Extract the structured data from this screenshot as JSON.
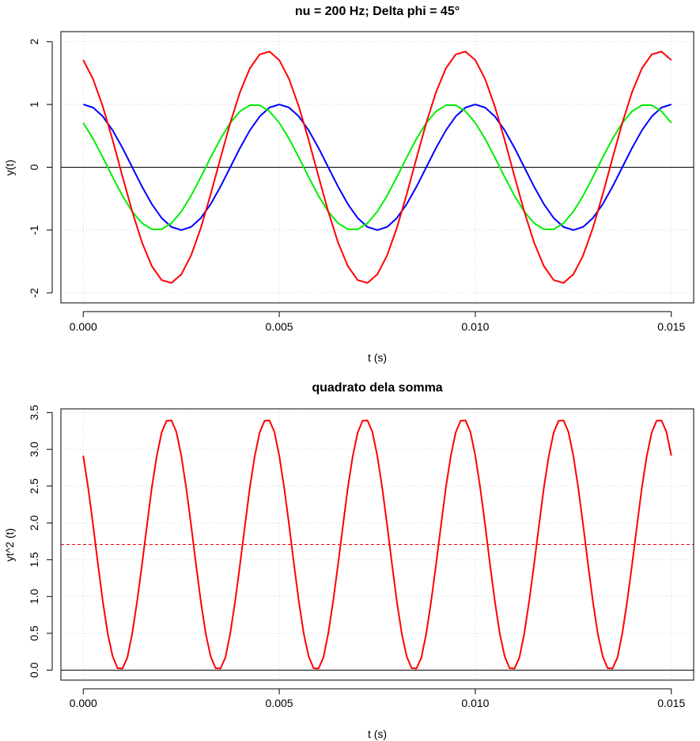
{
  "chart_data": [
    {
      "type": "line",
      "title": "nu = 200 Hz;   Delta phi = 45°",
      "xlabel": "t (s)",
      "ylabel": "y(t)",
      "xlim": [
        -0.00057,
        0.01557
      ],
      "ylim": [
        -2.16,
        2.16
      ],
      "x_ticks": [
        0.0,
        0.005,
        0.01,
        0.015
      ],
      "x_tick_labels": [
        "0.000",
        "0.005",
        "0.010",
        "0.015"
      ],
      "y_ticks": [
        -2,
        -1,
        0,
        1,
        2
      ],
      "y_tick_labels": [
        "-2",
        "-1",
        "0",
        "1",
        "2"
      ],
      "grid": true,
      "reference_line": {
        "y": 0,
        "color": "#000000",
        "style": "solid"
      },
      "frequency_hz": 200,
      "phase_shift_deg": 45,
      "series": [
        {
          "color": "#0000ff",
          "x": [
            0,
            0.00025,
            0.0005,
            0.00075,
            0.001,
            0.00125,
            0.0015,
            0.00175,
            0.002,
            0.00225,
            0.0025,
            0.00275,
            0.003,
            0.00325,
            0.0035,
            0.00375,
            0.004,
            0.00425,
            0.0045,
            0.00475,
            0.005,
            0.00525,
            0.0055,
            0.00575,
            0.006,
            0.00625,
            0.0065,
            0.00675,
            0.007,
            0.00725,
            0.0075,
            0.00775,
            0.008,
            0.00825,
            0.0085,
            0.00875,
            0.009,
            0.00925,
            0.0095,
            0.00975,
            0.01,
            0.01025,
            0.0105,
            0.01075,
            0.011,
            0.01125,
            0.0115,
            0.01175,
            0.012,
            0.01225,
            0.0125,
            0.01275,
            0.013,
            0.01325,
            0.0135,
            0.01375,
            0.014,
            0.01425,
            0.0145,
            0.01475,
            0.015
          ],
          "y": [
            1.0,
            0.951,
            0.809,
            0.588,
            0.309,
            0.0,
            -0.309,
            -0.588,
            -0.809,
            -0.951,
            -1.0,
            -0.951,
            -0.809,
            -0.588,
            -0.309,
            0.0,
            0.309,
            0.588,
            0.809,
            0.951,
            1.0,
            0.951,
            0.809,
            0.588,
            0.309,
            0.0,
            -0.309,
            -0.588,
            -0.809,
            -0.951,
            -1.0,
            -0.951,
            -0.809,
            -0.588,
            -0.309,
            0.0,
            0.309,
            0.588,
            0.809,
            0.951,
            1.0,
            0.951,
            0.809,
            0.588,
            0.309,
            0.0,
            -0.309,
            -0.588,
            -0.809,
            -0.951,
            -1.0,
            -0.951,
            -0.809,
            -0.588,
            -0.309,
            0.0,
            0.309,
            0.588,
            0.809,
            0.951,
            1.0
          ]
        },
        {
          "color": "#00ee00",
          "x": [
            0,
            0.00025,
            0.0005,
            0.00075,
            0.001,
            0.00125,
            0.0015,
            0.00175,
            0.002,
            0.00225,
            0.0025,
            0.00275,
            0.003,
            0.00325,
            0.0035,
            0.00375,
            0.004,
            0.00425,
            0.0045,
            0.00475,
            0.005,
            0.00525,
            0.0055,
            0.00575,
            0.006,
            0.00625,
            0.0065,
            0.00675,
            0.007,
            0.00725,
            0.0075,
            0.00775,
            0.008,
            0.00825,
            0.0085,
            0.00875,
            0.009,
            0.00925,
            0.0095,
            0.00975,
            0.01,
            0.01025,
            0.0105,
            0.01075,
            0.011,
            0.01125,
            0.0115,
            0.01175,
            0.012,
            0.01225,
            0.0125,
            0.01275,
            0.013,
            0.01325,
            0.0135,
            0.01375,
            0.014,
            0.01425,
            0.0145,
            0.01475,
            0.015
          ],
          "y": [
            0.707,
            0.454,
            0.156,
            -0.156,
            -0.454,
            -0.707,
            -0.891,
            -0.988,
            -0.988,
            -0.891,
            -0.707,
            -0.454,
            -0.156,
            0.156,
            0.454,
            0.707,
            0.891,
            0.988,
            0.988,
            0.891,
            0.707,
            0.454,
            0.156,
            -0.156,
            -0.454,
            -0.707,
            -0.891,
            -0.988,
            -0.988,
            -0.891,
            -0.707,
            -0.454,
            -0.156,
            0.156,
            0.454,
            0.707,
            0.891,
            0.988,
            0.988,
            0.891,
            0.707,
            0.454,
            0.156,
            -0.156,
            -0.454,
            -0.707,
            -0.891,
            -0.988,
            -0.988,
            -0.891,
            -0.707,
            -0.454,
            -0.156,
            0.156,
            0.454,
            0.707,
            0.891,
            0.988,
            0.988,
            0.891,
            0.707
          ]
        },
        {
          "color": "#ff0000",
          "x": [
            0,
            0.00025,
            0.0005,
            0.00075,
            0.001,
            0.00125,
            0.0015,
            0.00175,
            0.002,
            0.00225,
            0.0025,
            0.00275,
            0.003,
            0.00325,
            0.0035,
            0.00375,
            0.004,
            0.00425,
            0.0045,
            0.00475,
            0.005,
            0.00525,
            0.0055,
            0.00575,
            0.006,
            0.00625,
            0.0065,
            0.00675,
            0.007,
            0.00725,
            0.0075,
            0.00775,
            0.008,
            0.00825,
            0.0085,
            0.00875,
            0.009,
            0.00925,
            0.0095,
            0.00975,
            0.01,
            0.01025,
            0.0105,
            0.01075,
            0.011,
            0.01125,
            0.0115,
            0.01175,
            0.012,
            0.01225,
            0.0125,
            0.01275,
            0.013,
            0.01325,
            0.0135,
            0.01375,
            0.014,
            0.01425,
            0.0145,
            0.01475,
            0.015
          ],
          "y": [
            1.707,
            1.405,
            0.965,
            0.432,
            -0.145,
            -0.707,
            -1.2,
            -1.576,
            -1.797,
            -1.842,
            -1.707,
            -1.405,
            -0.965,
            -0.432,
            0.145,
            0.707,
            1.2,
            1.576,
            1.797,
            1.842,
            1.707,
            1.405,
            0.965,
            0.432,
            -0.145,
            -0.707,
            -1.2,
            -1.576,
            -1.797,
            -1.842,
            -1.707,
            -1.405,
            -0.965,
            -0.432,
            0.145,
            0.707,
            1.2,
            1.576,
            1.797,
            1.842,
            1.707,
            1.405,
            0.965,
            0.432,
            -0.145,
            -0.707,
            -1.2,
            -1.576,
            -1.797,
            -1.842,
            -1.707,
            -1.405,
            -0.965,
            -0.432,
            0.145,
            0.707,
            1.2,
            1.576,
            1.797,
            1.842,
            1.707
          ]
        }
      ]
    },
    {
      "type": "line",
      "title": "quadrato dela somma",
      "xlabel": "t (s)",
      "ylabel": "yt^2 (t)",
      "xlim": [
        -0.00057,
        0.01557
      ],
      "ylim": [
        -0.136,
        3.55
      ],
      "x_ticks": [
        0.0,
        0.005,
        0.01,
        0.015
      ],
      "x_tick_labels": [
        "0.000",
        "0.005",
        "0.010",
        "0.015"
      ],
      "y_ticks": [
        0.0,
        0.5,
        1.0,
        1.5,
        2.0,
        2.5,
        3.0,
        3.5
      ],
      "y_tick_labels": [
        "0.0",
        "0.5",
        "1.0",
        "1.5",
        "2.0",
        "2.5",
        "3.0",
        "3.5"
      ],
      "grid": true,
      "reference_line": {
        "y": 0,
        "color": "#000000",
        "style": "solid"
      },
      "mean_line": {
        "y": 1.707,
        "color": "#ff0000",
        "style": "dashed"
      },
      "series": [
        {
          "color": "#ff0000",
          "x": [
            0,
            0.000125,
            0.00025,
            0.000375,
            0.0005,
            0.000625,
            0.00075,
            0.000875,
            0.001,
            0.001125,
            0.00125,
            0.001375,
            0.0015,
            0.001625,
            0.00175,
            0.001875,
            0.002,
            0.002125,
            0.00225,
            0.002375,
            0.0025,
            0.002625,
            0.00275,
            0.002875,
            0.003,
            0.003125,
            0.00325,
            0.003375,
            0.0035,
            0.003625,
            0.00375,
            0.003875,
            0.004,
            0.004125,
            0.00425,
            0.004375,
            0.0045,
            0.004625,
            0.00475,
            0.004875,
            0.005,
            0.005125,
            0.00525,
            0.005375,
            0.0055,
            0.005625,
            0.00575,
            0.005875,
            0.006,
            0.006125,
            0.00625,
            0.006375,
            0.0065,
            0.006625,
            0.00675,
            0.006875,
            0.007,
            0.007125,
            0.00725,
            0.007375,
            0.0075,
            0.007625,
            0.00775,
            0.007875,
            0.008,
            0.008125,
            0.00825,
            0.008375,
            0.0085,
            0.008625,
            0.00875,
            0.008875,
            0.009,
            0.009125,
            0.00925,
            0.009375,
            0.0095,
            0.009625,
            0.00975,
            0.009875,
            0.01,
            0.010125,
            0.01025,
            0.010375,
            0.0105,
            0.010625,
            0.01075,
            0.010875,
            0.011,
            0.011125,
            0.01125,
            0.011375,
            0.0115,
            0.011625,
            0.01175,
            0.011875,
            0.012,
            0.012125,
            0.01225,
            0.012375,
            0.0125,
            0.012625,
            0.01275,
            0.012875,
            0.013,
            0.013125,
            0.01325,
            0.013375,
            0.0135,
            0.013625,
            0.01375,
            0.013875,
            0.014,
            0.014125,
            0.01425,
            0.014375,
            0.0145,
            0.014625,
            0.01475,
            0.014875,
            0.015
          ],
          "y": [
            2.914,
            2.479,
            1.975,
            1.44,
            0.931,
            0.493,
            0.186,
            0.027,
            0.021,
            0.17,
            0.5,
            0.94,
            1.44,
            1.965,
            2.484,
            2.91,
            3.229,
            3.389,
            3.393,
            3.237,
            2.914,
            2.479,
            1.975,
            1.44,
            0.931,
            0.493,
            0.186,
            0.027,
            0.021,
            0.17,
            0.5,
            0.94,
            1.44,
            1.965,
            2.484,
            2.91,
            3.229,
            3.389,
            3.393,
            3.237,
            2.914,
            2.479,
            1.975,
            1.44,
            0.931,
            0.493,
            0.186,
            0.027,
            0.021,
            0.17,
            0.5,
            0.94,
            1.44,
            1.965,
            2.484,
            2.91,
            3.229,
            3.389,
            3.393,
            3.237,
            2.914,
            2.479,
            1.975,
            1.44,
            0.931,
            0.493,
            0.186,
            0.027,
            0.021,
            0.17,
            0.5,
            0.94,
            1.44,
            1.965,
            2.484,
            2.91,
            3.229,
            3.389,
            3.393,
            3.237,
            2.914,
            2.479,
            1.975,
            1.44,
            0.931,
            0.493,
            0.186,
            0.027,
            0.021,
            0.17,
            0.5,
            0.94,
            1.44,
            1.965,
            2.484,
            2.91,
            3.229,
            3.389,
            3.393,
            3.237,
            2.914,
            2.479,
            1.975,
            1.44,
            0.931,
            0.493,
            0.186,
            0.027,
            0.021,
            0.17,
            0.5,
            0.94,
            1.44,
            1.965,
            2.484,
            2.91,
            3.229,
            3.389,
            3.393,
            3.237,
            2.914
          ]
        }
      ]
    }
  ]
}
